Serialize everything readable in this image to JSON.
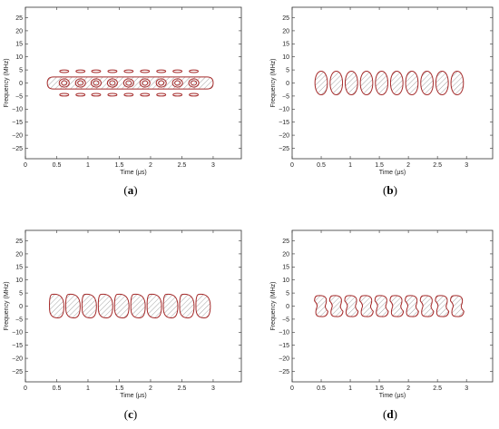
{
  "figure": {
    "accent_color": "#a52a2a",
    "hatch_color": "#888888"
  },
  "chart_data": [
    {
      "type": "contour",
      "caption": "(a)",
      "caption_letter": "a",
      "xlabel": "Time (μs)",
      "ylabel": "Frequency (MHz)",
      "xlim": [
        0,
        3.5
      ],
      "ylim": [
        -29,
        29
      ],
      "xticks": [
        0,
        0.5,
        1,
        1.5,
        2,
        2.5,
        3
      ],
      "xtick_labels": [
        "0",
        "0.5",
        "1",
        "1.5",
        "2",
        "2.5",
        "3"
      ],
      "yticks": [
        25,
        20,
        15,
        10,
        5,
        0,
        -5,
        -10,
        -15,
        -20,
        -25
      ],
      "ytick_labels": [
        "25",
        "20",
        "15",
        "10",
        "5",
        "0",
        "−5",
        "−10",
        "−15",
        "−20",
        "−25"
      ],
      "envelope": {
        "x_start": 0.35,
        "x_end": 3.0,
        "half_height": 2.3
      },
      "pulse_centers": [
        0.62,
        0.88,
        1.13,
        1.39,
        1.65,
        1.91,
        2.17,
        2.43,
        2.69
      ],
      "pulse_width": 0.16,
      "pulse_half_height": 0.9,
      "sidelobe_offsets": [
        4.5,
        -4.5
      ],
      "sidelobe_half_height": 0.5
    },
    {
      "type": "contour",
      "caption": "(b)",
      "caption_letter": "b",
      "xlabel": "Time (μs)",
      "ylabel": "Frequency (MHz)",
      "xlim": [
        0,
        3.5
      ],
      "ylim": [
        -29,
        29
      ],
      "xticks": [
        0,
        0.5,
        1,
        1.5,
        2,
        2.5,
        3
      ],
      "xtick_labels": [
        "0",
        "0.5",
        "1",
        "1.5",
        "2",
        "2.5",
        "3"
      ],
      "yticks": [
        25,
        20,
        15,
        10,
        5,
        0,
        -5,
        -10,
        -15,
        -20,
        -25
      ],
      "ytick_labels": [
        "25",
        "20",
        "15",
        "10",
        "5",
        "0",
        "−5",
        "−10",
        "−15",
        "−20",
        "−25"
      ],
      "pulse_centers": [
        0.5,
        0.76,
        1.02,
        1.28,
        1.54,
        1.8,
        2.06,
        2.32,
        2.58,
        2.84
      ],
      "pulse_width": 0.22,
      "pulse_half_height": 4.5,
      "shape": "ellipse"
    },
    {
      "type": "contour",
      "caption": "(c)",
      "caption_letter": "c",
      "xlabel": "Time (μs)",
      "ylabel": "Frequency (MHz)",
      "xlim": [
        0,
        3.5
      ],
      "ylim": [
        -29,
        29
      ],
      "xticks": [
        0,
        0.5,
        1,
        1.5,
        2,
        2.5,
        3
      ],
      "xtick_labels": [
        "0",
        "0.5",
        "1",
        "1.5",
        "2",
        "2.5",
        "3"
      ],
      "yticks": [
        25,
        20,
        15,
        10,
        5,
        0,
        -5,
        -10,
        -15,
        -20,
        -25
      ],
      "ytick_labels": [
        "25",
        "20",
        "15",
        "10",
        "5",
        "0",
        "−5",
        "−10",
        "−15",
        "−20",
        "−25"
      ],
      "pulse_centers": [
        0.5,
        0.76,
        1.02,
        1.28,
        1.54,
        1.8,
        2.06,
        2.32,
        2.58,
        2.84
      ],
      "pulse_width": 0.23,
      "pulse_half_height": 4.5,
      "shape": "rounded"
    },
    {
      "type": "contour",
      "caption": "(d)",
      "caption_letter": "d",
      "xlabel": "Time (μs)",
      "ylabel": "Frequency (MHz)",
      "xlim": [
        0,
        3.5
      ],
      "ylim": [
        -29,
        29
      ],
      "xticks": [
        0,
        0.5,
        1,
        1.5,
        2,
        2.5,
        3
      ],
      "xtick_labels": [
        "0",
        "0.5",
        "1",
        "1.5",
        "2",
        "2.5",
        "3"
      ],
      "yticks": [
        25,
        20,
        15,
        10,
        5,
        0,
        -5,
        -10,
        -15,
        -20,
        -25
      ],
      "ytick_labels": [
        "25",
        "20",
        "15",
        "10",
        "5",
        "0",
        "−5",
        "−10",
        "−15",
        "−20",
        "−25"
      ],
      "pulse_centers": [
        0.5,
        0.76,
        1.02,
        1.28,
        1.54,
        1.8,
        2.06,
        2.32,
        2.58,
        2.84
      ],
      "pulse_width": 0.23,
      "pulse_half_height": 4.0,
      "shape": "waisted"
    }
  ]
}
